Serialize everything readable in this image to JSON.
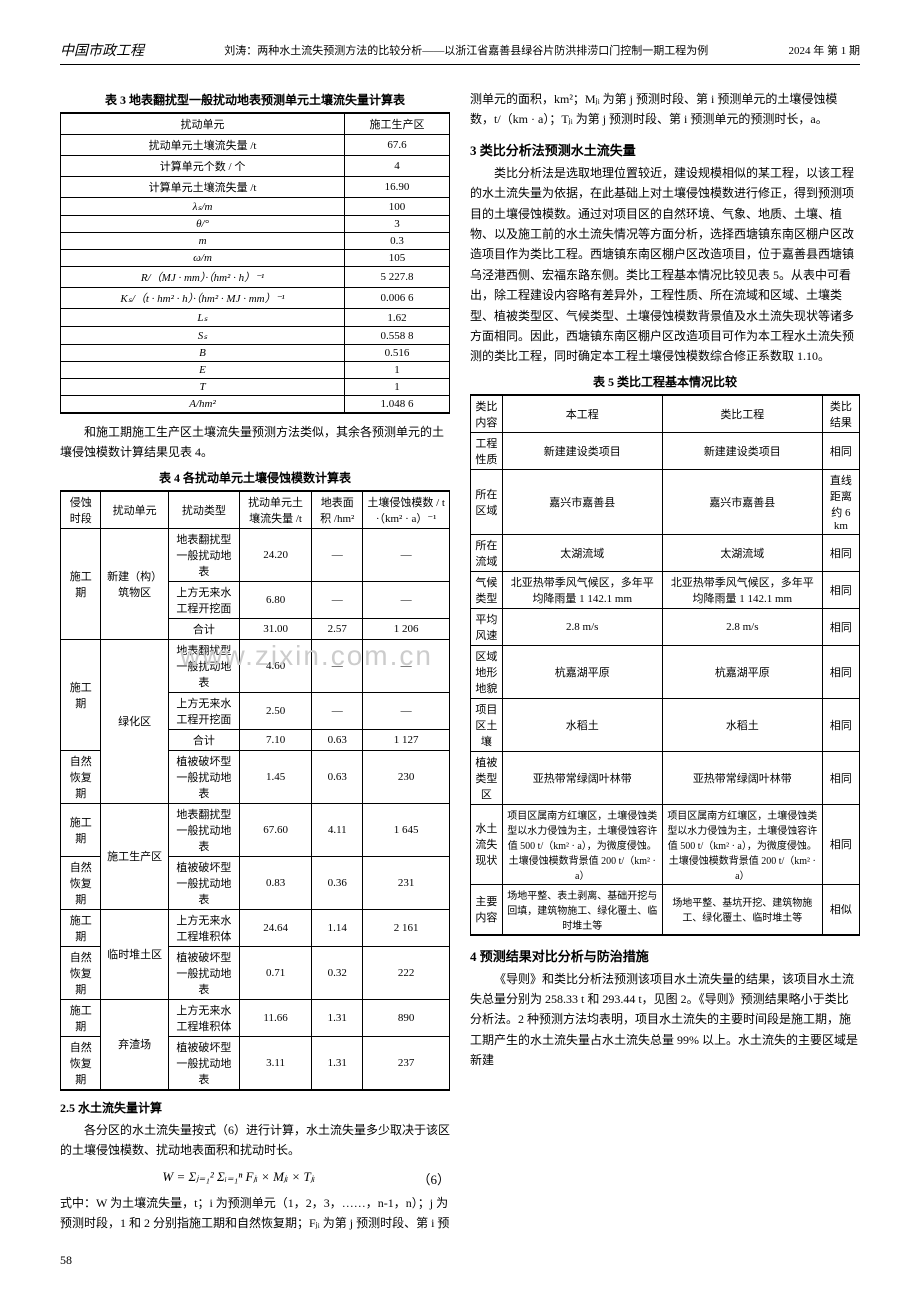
{
  "header": {
    "journal": "中国市政工程",
    "subtitle": "刘涛：两种水土流失预测方法的比较分析——以浙江省嘉善县绿谷片防洪排涝口门控制一期工程为例",
    "issue": "2024 年 第 1 期"
  },
  "watermark": "www.zixin.com.cn",
  "table3": {
    "title": "表 3  地表翻扰型一般扰动地表预测单元土壤流失量计算表",
    "col_header": [
      "扰动单元",
      "施工生产区"
    ],
    "rows": [
      [
        "扰动单元土壤流失量 /t",
        "67.6"
      ],
      [
        "计算单元个数 / 个",
        "4"
      ],
      [
        "计算单元土壤流失量 /t",
        "16.90"
      ],
      [
        "λₛ/m",
        "100"
      ],
      [
        "θ/°",
        "3"
      ],
      [
        "m",
        "0.3"
      ],
      [
        "ω/m",
        "105"
      ],
      [
        "R/（MJ · mm）·（hm² · h）⁻¹",
        "5 227.8"
      ],
      [
        "Kₛ/（t · hm² · h）·（hm² · MJ · mm）⁻¹",
        "0.006 6"
      ],
      [
        "Lₛ",
        "1.62"
      ],
      [
        "Sₛ",
        "0.558 8"
      ],
      [
        "B",
        "0.516"
      ],
      [
        "E",
        "1"
      ],
      [
        "T",
        "1"
      ],
      [
        "A/hm²",
        "1.048 6"
      ]
    ]
  },
  "para1": "和施工期施工生产区土壤流失量预测方法类似，其余各预测单元的土壤侵蚀模数计算结果见表 4。",
  "table4": {
    "title": "表 4  各扰动单元土壤侵蚀模数计算表",
    "headers": [
      "侵蚀时段",
      "扰动单元",
      "扰动类型",
      "扰动单元土壤流失量 /t",
      "地表面积 /hm²",
      "土壤侵蚀模数 / t ·（km² · a）⁻¹"
    ],
    "groups": [
      {
        "period": "施工期",
        "period_rowspan": 3,
        "unit": "新建（构）筑物区",
        "unit_rowspan": 3,
        "rows": [
          [
            "地表翻扰型一般扰动地表",
            "24.20",
            "—",
            "—"
          ],
          [
            "上方无来水工程开挖面",
            "6.80",
            "—",
            "—"
          ],
          [
            "合计",
            "31.00",
            "2.57",
            "1 206"
          ]
        ]
      },
      {
        "period": "施工期",
        "period_rowspan": 3,
        "unit": "绿化区",
        "unit_rowspan": 4,
        "rows": [
          [
            "地表翻扰型一般扰动地表",
            "4.60",
            "—",
            "—"
          ],
          [
            "上方无来水工程开挖面",
            "2.50",
            "—",
            "—"
          ],
          [
            "合计",
            "7.10",
            "0.63",
            "1 127"
          ]
        ]
      },
      {
        "period": "自然恢复期",
        "period_rowspan": 1,
        "rows": [
          [
            "植被破坏型一般扰动地表",
            "1.45",
            "0.63",
            "230"
          ]
        ]
      },
      {
        "period": "施工期",
        "period_rowspan": 1,
        "unit": "施工生产区",
        "unit_rowspan": 2,
        "rows": [
          [
            "地表翻扰型一般扰动地表",
            "67.60",
            "4.11",
            "1 645"
          ]
        ]
      },
      {
        "period": "自然恢复期",
        "period_rowspan": 1,
        "rows": [
          [
            "植被破坏型一般扰动地表",
            "0.83",
            "0.36",
            "231"
          ]
        ]
      },
      {
        "period": "施工期",
        "period_rowspan": 1,
        "unit": "临时堆土区",
        "unit_rowspan": 2,
        "rows": [
          [
            "上方无来水工程堆积体",
            "24.64",
            "1.14",
            "2 161"
          ]
        ]
      },
      {
        "period": "自然恢复期",
        "period_rowspan": 1,
        "rows": [
          [
            "植被破坏型一般扰动地表",
            "0.71",
            "0.32",
            "222"
          ]
        ]
      },
      {
        "period": "施工期",
        "period_rowspan": 1,
        "unit": "弃渣场",
        "unit_rowspan": 2,
        "rows": [
          [
            "上方无来水工程堆积体",
            "11.66",
            "1.31",
            "890"
          ]
        ]
      },
      {
        "period": "自然恢复期",
        "period_rowspan": 1,
        "rows": [
          [
            "植被破坏型一般扰动地表",
            "3.11",
            "1.31",
            "237"
          ]
        ]
      }
    ]
  },
  "section25": {
    "title": "2.5  水土流失量计算",
    "para1": "各分区的水土流失量按式（6）进行计算，水土流失量多少取决于该区的土壤侵蚀模数、扰动地表面积和扰动时长。",
    "formula_text": "W = Σⱼ₌₁² Σᵢ₌₁ⁿ Fⱼᵢ × Mⱼᵢ × Tⱼᵢ",
    "formula_num": "（6）",
    "para2": "式中：W 为土壤流失量，t；i 为预测单元（1，2，3，……，n-1，n）；j 为预测时段，1 和 2 分别指施工期和自然恢复期；Fⱼᵢ 为第 j 预测时段、第 i 预"
  },
  "right_para1": "测单元的面积，km²；Mⱼᵢ 为第 j 预测时段、第 i 预测单元的土壤侵蚀模数，t/（km · a）；Tⱼᵢ 为第 j 预测时段、第 i 预测单元的预测时长，a。",
  "section3": {
    "title": "3  类比分析法预测水土流失量",
    "para1": "类比分析法是选取地理位置较近，建设规模相似的某工程，以该工程的水土流失量为依据，在此基础上对土壤侵蚀模数进行修正，得到预测项目的土壤侵蚀模数。通过对项目区的自然环境、气象、地质、土壤、植物、以及施工前的水土流失情况等方面分析，选择西塘镇东南区棚户区改造项目作为类比工程。西塘镇东南区棚户区改造项目，位于嘉善县西塘镇乌泾港西侧、宏福东路东侧。类比工程基本情况比较见表 5。从表中可看出，除工程建设内容略有差异外，工程性质、所在流域和区域、土壤类型、植被类型区、气候类型、土壤侵蚀模数背景值及水土流失现状等诸多方面相同。因此，西塘镇东南区棚户区改造项目可作为本工程水土流失预测的类比工程，同时确定本工程土壤侵蚀模数综合修正系数取 1.10。"
  },
  "table5": {
    "title": "表 5  类比工程基本情况比较",
    "headers": [
      "类比内容",
      "本工程",
      "类比工程",
      "类比结果"
    ],
    "rows": [
      [
        "工程性质",
        "新建建设类项目",
        "新建建设类项目",
        "相同"
      ],
      [
        "所在区域",
        "嘉兴市嘉善县",
        "嘉兴市嘉善县",
        "直线距离约 6 km"
      ],
      [
        "所在流域",
        "太湖流域",
        "太湖流域",
        "相同"
      ],
      [
        "气候类型",
        "北亚热带季风气候区，多年平均降雨量 1 142.1 mm",
        "北亚热带季风气候区，多年平均降雨量 1 142.1 mm",
        "相同"
      ],
      [
        "平均风速",
        "2.8 m/s",
        "2.8 m/s",
        "相同"
      ],
      [
        "区域地形地貌",
        "杭嘉湖平原",
        "杭嘉湖平原",
        "相同"
      ],
      [
        "项目区土壤",
        "水稻土",
        "水稻土",
        "相同"
      ],
      [
        "植被类型区",
        "亚热带常绿阔叶林带",
        "亚热带常绿阔叶林带",
        "相同"
      ],
      [
        "水土流失现状",
        "项目区属南方红壤区，土壤侵蚀类型以水力侵蚀为主，土壤侵蚀容许值 500 t/（km² · a），为微度侵蚀。土壤侵蚀模数背景值 200 t/（km² · a）",
        "项目区属南方红壤区，土壤侵蚀类型以水力侵蚀为主，土壤侵蚀容许值 500 t/（km² · a），为微度侵蚀。土壤侵蚀模数背景值 200 t/（km² · a）",
        "相同"
      ],
      [
        "主要内容",
        "场地平整、表土剥离、基础开挖与回填，建筑物施工、绿化覆土、临时堆土等",
        "场地平整、基坑开挖、建筑物施工、绿化覆土、临时堆土等",
        "相似"
      ]
    ]
  },
  "section4": {
    "title": "4  预测结果对比分析与防治措施",
    "para1": "《导则》和类比分析法预测该项目水土流失量的结果，该项目水土流失总量分别为 258.33 t 和 293.44 t，见图 2。《导则》预测结果略小于类比分析法。2 种预测方法均表明，项目水土流失的主要时间段是施工期，施工期产生的水土流失量占水土流失总量 99% 以上。水土流失的主要区域是新建"
  },
  "page": "58"
}
